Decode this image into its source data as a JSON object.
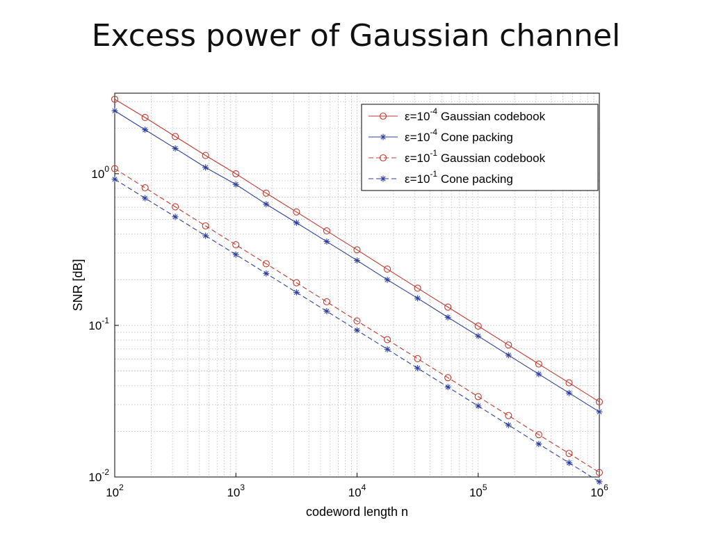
{
  "slide": {
    "title": "Excess power of Gaussian channel"
  },
  "chart_data": {
    "type": "line",
    "xlabel": "codeword length n",
    "ylabel": "SNR [dB]",
    "x_scale": "log",
    "y_scale": "log",
    "xlim": [
      100,
      1000000
    ],
    "ylim": [
      0.01,
      3.4
    ],
    "x_ticks": [
      {
        "base": "10",
        "exp": "2",
        "value": 100
      },
      {
        "base": "10",
        "exp": "3",
        "value": 1000
      },
      {
        "base": "10",
        "exp": "4",
        "value": 10000
      },
      {
        "base": "10",
        "exp": "5",
        "value": 100000
      },
      {
        "base": "10",
        "exp": "6",
        "value": 1000000
      }
    ],
    "y_ticks": [
      {
        "base": "10",
        "exp": "-2",
        "value": 0.01
      },
      {
        "base": "10",
        "exp": "-1",
        "value": 0.1
      },
      {
        "base": "10",
        "exp": "0",
        "value": 1
      }
    ],
    "grid": true,
    "legend_position": "top-right",
    "x": [
      100,
      178,
      316,
      562,
      1000,
      1778,
      3162,
      5623,
      10000,
      17783,
      31623,
      56234,
      100000,
      177828,
      316228,
      562341,
      1000000
    ],
    "series": [
      {
        "name": "ε=10^-4 Gaussian codebook",
        "legend_prefix": "ε=10",
        "legend_exp": "-4",
        "legend_suffix": "Gaussian codebook",
        "color": "#c0392b",
        "marker": "circle",
        "dash": "solid",
        "values": [
          3.1,
          2.35,
          1.76,
          1.32,
          1.0,
          0.745,
          0.56,
          0.42,
          0.315,
          0.235,
          0.176,
          0.132,
          0.099,
          0.0742,
          0.0556,
          0.0418,
          0.0313
        ]
      },
      {
        "name": "ε=10^-4 Cone packing",
        "legend_prefix": "ε=10",
        "legend_exp": "-4",
        "legend_suffix": "Cone packing",
        "color": "#2c3e9e",
        "marker": "star",
        "dash": "solid",
        "values": [
          2.6,
          1.95,
          1.47,
          1.1,
          0.85,
          0.63,
          0.475,
          0.357,
          0.268,
          0.2,
          0.151,
          0.113,
          0.085,
          0.0636,
          0.0477,
          0.0358,
          0.0269
        ]
      },
      {
        "name": "ε=10^-1 Gaussian codebook",
        "legend_prefix": "ε=10",
        "legend_exp": "-1",
        "legend_suffix": "Gaussian codebook",
        "color": "#c0392b",
        "marker": "circle",
        "dash": "dashed",
        "values": [
          1.08,
          0.808,
          0.605,
          0.453,
          0.34,
          0.255,
          0.191,
          0.143,
          0.107,
          0.0805,
          0.0603,
          0.0452,
          0.0339,
          0.0254,
          0.019,
          0.0143,
          0.0107
        ]
      },
      {
        "name": "ε=10^-1 Cone packing",
        "legend_prefix": "ε=10",
        "legend_exp": "-1",
        "legend_suffix": "Cone packing",
        "color": "#2c3e9e",
        "marker": "star",
        "dash": "dashed",
        "values": [
          0.92,
          0.69,
          0.52,
          0.39,
          0.293,
          0.22,
          0.165,
          0.124,
          0.0928,
          0.0696,
          0.0522,
          0.0392,
          0.0294,
          0.022,
          0.0165,
          0.0124,
          0.0093
        ]
      }
    ]
  }
}
